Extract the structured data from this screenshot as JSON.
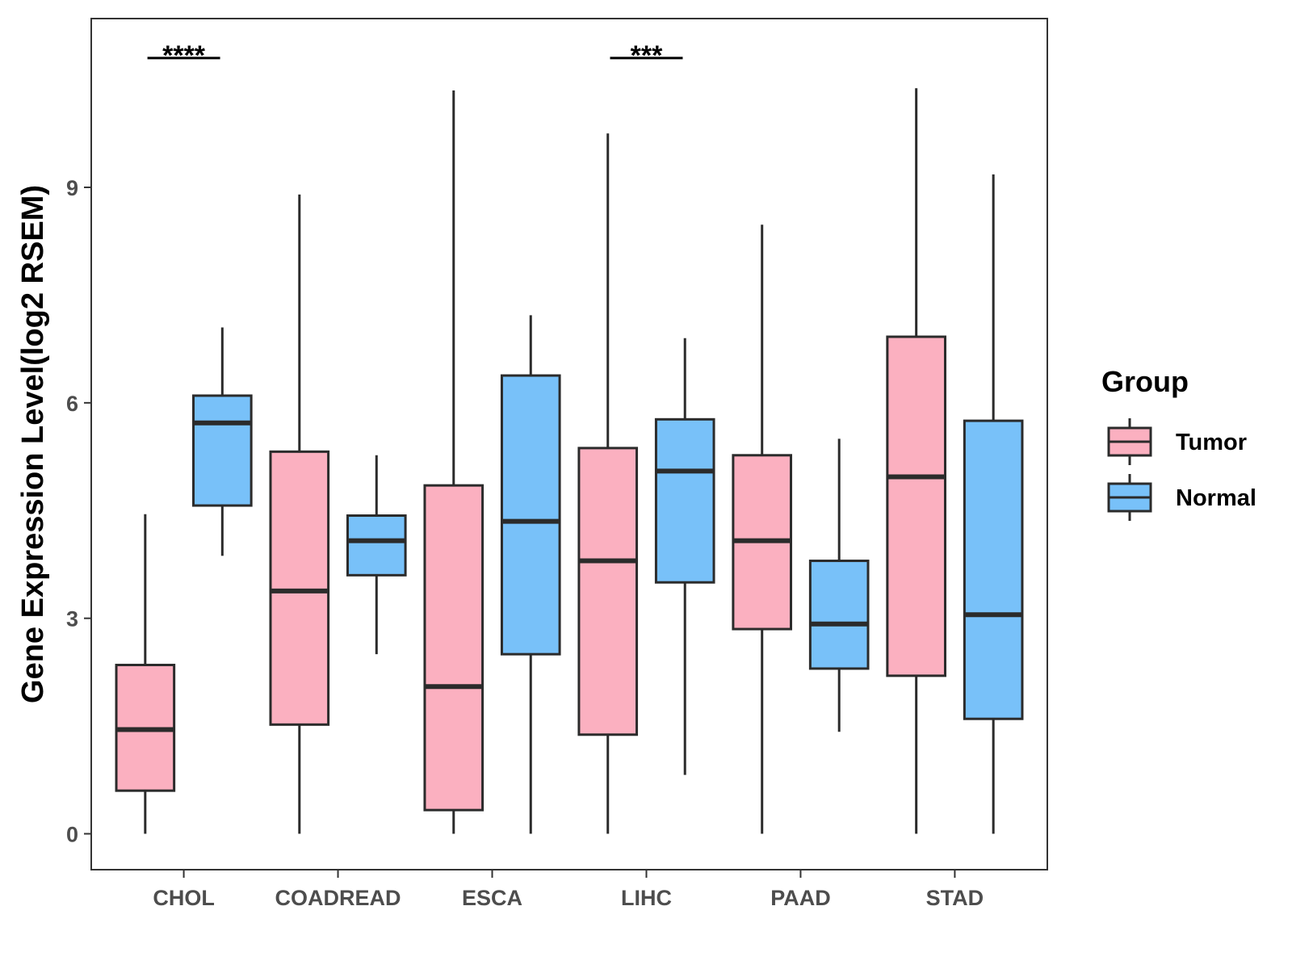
{
  "chart_data": {
    "type": "box",
    "title": "",
    "xlabel": "",
    "ylabel": "Gene Expression Level(log2 RSEM)",
    "ylim": [
      -0.5,
      11.35
    ],
    "yticks": [
      0,
      3,
      6,
      9
    ],
    "categories": [
      "CHOL",
      "COADREAD",
      "ESCA",
      "LIHC",
      "PAAD",
      "STAD"
    ],
    "legend": {
      "title": "Group",
      "position": "right",
      "entries": [
        {
          "name": "Tumor",
          "color": "#FBB0C0"
        },
        {
          "name": "Normal",
          "color": "#78C1F9"
        }
      ]
    },
    "series": [
      {
        "name": "Tumor",
        "color": "#FBB0C0",
        "boxes": [
          {
            "min": 0.0,
            "q1": 0.6,
            "median": 1.45,
            "q3": 2.35,
            "max": 4.45
          },
          {
            "min": 0.0,
            "q1": 1.52,
            "median": 3.38,
            "q3": 5.32,
            "max": 8.9
          },
          {
            "min": 0.0,
            "q1": 0.33,
            "median": 2.05,
            "q3": 4.85,
            "max": 10.35
          },
          {
            "min": 0.0,
            "q1": 1.38,
            "median": 3.8,
            "q3": 5.37,
            "max": 9.75
          },
          {
            "min": 0.0,
            "q1": 2.85,
            "median": 4.08,
            "q3": 5.27,
            "max": 8.48
          },
          {
            "min": 0.0,
            "q1": 2.2,
            "median": 4.97,
            "q3": 6.92,
            "max": 10.38
          }
        ]
      },
      {
        "name": "Normal",
        "color": "#78C1F9",
        "boxes": [
          {
            "min": 3.87,
            "q1": 4.57,
            "median": 5.72,
            "q3": 6.1,
            "max": 7.05
          },
          {
            "min": 2.5,
            "q1": 3.6,
            "median": 4.08,
            "q3": 4.43,
            "max": 5.27
          },
          {
            "min": 0.0,
            "q1": 2.5,
            "median": 4.35,
            "q3": 6.38,
            "max": 7.22
          },
          {
            "min": 0.82,
            "q1": 3.5,
            "median": 5.05,
            "q3": 5.77,
            "max": 6.9
          },
          {
            "min": 1.42,
            "q1": 2.3,
            "median": 2.92,
            "q3": 3.8,
            "max": 5.5
          },
          {
            "min": 0.0,
            "q1": 1.6,
            "median": 3.05,
            "q3": 5.75,
            "max": 9.18
          }
        ]
      }
    ],
    "annotations": [
      {
        "category": "CHOL",
        "label": "****",
        "y": 10.8
      },
      {
        "category": "LIHC",
        "label": "***",
        "y": 10.8
      }
    ]
  }
}
